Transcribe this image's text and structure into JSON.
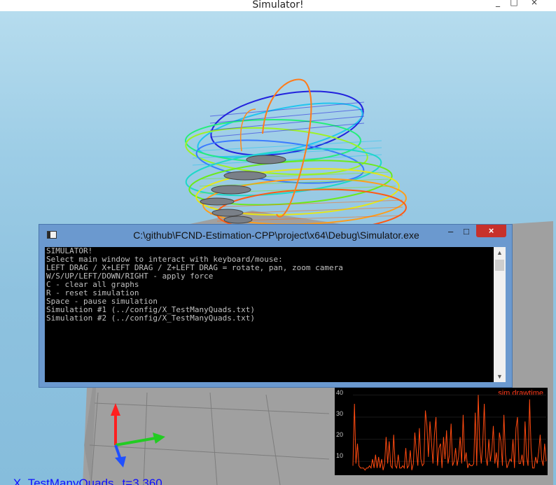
{
  "window": {
    "title": "Simulator!",
    "controls": [
      "_",
      "□",
      "×"
    ]
  },
  "console": {
    "title": "C:\\github\\FCND-Estimation-CPP\\project\\x64\\Debug\\Simulator.exe",
    "controls": [
      "–",
      "□",
      "×"
    ],
    "lines": [
      "SIMULATOR!",
      "Select main window to interact with keyboard/mouse:",
      "LEFT DRAG / X+LEFT DRAG / Z+LEFT DRAG = rotate, pan, zoom camera",
      "W/S/UP/LEFT/DOWN/RIGHT - apply force",
      "C - clear all graphs",
      "R - reset simulation",
      "Space - pause simulation",
      "Simulation #1 (../config/X_TestManyQuads.txt)",
      "Simulation #2 (../config/X_TestManyQuads.txt)"
    ]
  },
  "sim_label": {
    "name": "X_TestManyQuads",
    "time": "t=3.360"
  },
  "graph": {
    "title": "sim.drawtime",
    "y_ticks": [
      "40",
      "30",
      "20",
      "10"
    ],
    "ylim": [
      5,
      42
    ],
    "line_color": "#ff4a10",
    "values": [
      8,
      36,
      9,
      18,
      8,
      7,
      7,
      7,
      6,
      7,
      7,
      8,
      7,
      11,
      7,
      13,
      7,
      12,
      7,
      11,
      6,
      9,
      21,
      9,
      19,
      8,
      7,
      22,
      8,
      7,
      13,
      7,
      7,
      8,
      7,
      16,
      7,
      8,
      15,
      6,
      9,
      23,
      14,
      8,
      25,
      11,
      8,
      9,
      33,
      26,
      12,
      28,
      19,
      9,
      22,
      30,
      8,
      16,
      18,
      7,
      21,
      11,
      24,
      9,
      13,
      27,
      8,
      10,
      16,
      8,
      12,
      21,
      9,
      31,
      10,
      14,
      7,
      9,
      8,
      8,
      9,
      32,
      8,
      40,
      17,
      9,
      18,
      36,
      12,
      8,
      20,
      10,
      15,
      26,
      9,
      14,
      7,
      23,
      19,
      8,
      31,
      13,
      7,
      9,
      11,
      10,
      20,
      7,
      25,
      30,
      9,
      9,
      13,
      8,
      28,
      12,
      8,
      38,
      16,
      7,
      7,
      12,
      9,
      14,
      22,
      11,
      8,
      18,
      10
    ]
  },
  "colors": {
    "sky_top": "#b6dcee",
    "sky_bottom": "#86bddc",
    "floor": "#9c9c9c",
    "console_border": "#6b99cf",
    "console_close": "#c7312b",
    "label_blue": "#1010ff",
    "axis_x": "#22cc22",
    "axis_y": "#ff2020",
    "axis_z": "#2050ff"
  }
}
